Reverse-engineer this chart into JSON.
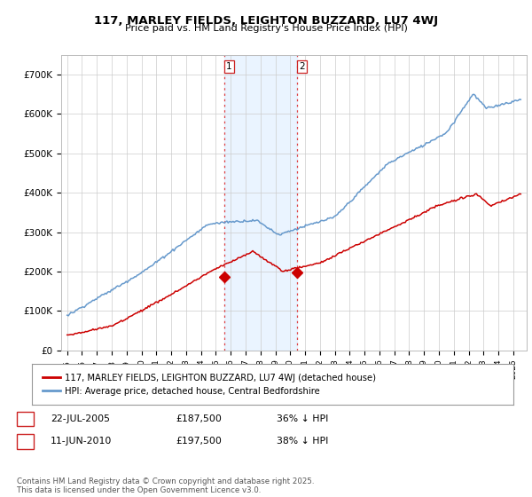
{
  "title1": "117, MARLEY FIELDS, LEIGHTON BUZZARD, LU7 4WJ",
  "title2": "Price paid vs. HM Land Registry's House Price Index (HPI)",
  "ylim": [
    0,
    750000
  ],
  "yticks": [
    0,
    100000,
    200000,
    300000,
    400000,
    500000,
    600000,
    700000
  ],
  "ytick_labels": [
    "£0",
    "£100K",
    "£200K",
    "£300K",
    "£400K",
    "£500K",
    "£600K",
    "£700K"
  ],
  "line1_color": "#cc0000",
  "line2_color": "#6699cc",
  "marker_color": "#cc0000",
  "purchase1_x": 2005.55,
  "purchase1_y": 187500,
  "purchase2_x": 2010.44,
  "purchase2_y": 197500,
  "vline_color": "#dd2222",
  "shaded_color": "#ddeeff",
  "shaded_alpha": 0.6,
  "legend_line1": "117, MARLEY FIELDS, LEIGHTON BUZZARD, LU7 4WJ (detached house)",
  "legend_line2": "HPI: Average price, detached house, Central Bedfordshire",
  "annotation1_label": "1",
  "annotation1_date": "22-JUL-2005",
  "annotation1_price": "£187,500",
  "annotation1_pct": "36% ↓ HPI",
  "annotation2_label": "2",
  "annotation2_date": "11-JUN-2010",
  "annotation2_price": "£197,500",
  "annotation2_pct": "38% ↓ HPI",
  "footer": "Contains HM Land Registry data © Crown copyright and database right 2025.\nThis data is licensed under the Open Government Licence v3.0.",
  "bg_color": "#ffffff",
  "grid_color": "#cccccc",
  "xlim_left": 1994.6,
  "xlim_right": 2025.9
}
